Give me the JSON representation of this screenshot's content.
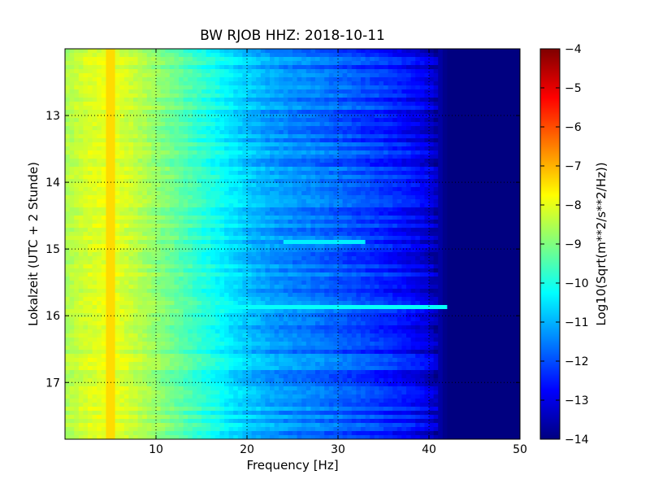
{
  "chart_data": {
    "type": "heatmap",
    "title": "BW RJOB HHZ: 2018-10-11",
    "xlabel": "Frequency [Hz]",
    "ylabel": "Lokalzeit (UTC + 2 Stunde)",
    "xlim": [
      0,
      50
    ],
    "ylim": [
      12.0,
      17.85
    ],
    "y_inverted": true,
    "grid": true,
    "x_ticks": [
      10,
      20,
      30,
      40,
      50
    ],
    "y_ticks": [
      13,
      14,
      15,
      16,
      17
    ],
    "colorbar": {
      "label": "Log10(Sqrt(m**2/s**2/Hz))",
      "range": [
        -14,
        -4
      ],
      "ticks": [
        -4,
        -5,
        -6,
        -7,
        -8,
        -9,
        -10,
        -11,
        -12,
        -13,
        -14
      ],
      "colormap": "jet",
      "placement": "right"
    },
    "frequency_profile": {
      "frequency_hz": [
        0,
        2,
        5,
        8,
        10,
        12,
        14,
        16,
        18,
        20,
        22,
        25,
        28,
        30,
        32,
        35,
        38,
        40,
        42,
        50
      ],
      "log10_amplitude": [
        -8.6,
        -8.2,
        -7.9,
        -8.4,
        -8.8,
        -9.2,
        -9.6,
        -10.0,
        -10.4,
        -10.8,
        -11.1,
        -11.4,
        -11.6,
        -11.8,
        -12.0,
        -12.3,
        -12.7,
        -13.1,
        -14.0,
        -14.0
      ]
    },
    "features": [
      {
        "type": "line",
        "frequency_hz": 5.0,
        "value": -7.4
      },
      {
        "type": "band",
        "time": 15.85,
        "freq_range": [
          0,
          42
        ],
        "value": -10.2
      },
      {
        "type": "band",
        "time": 14.9,
        "freq_range": [
          24,
          33
        ],
        "value": -10.4
      }
    ]
  }
}
